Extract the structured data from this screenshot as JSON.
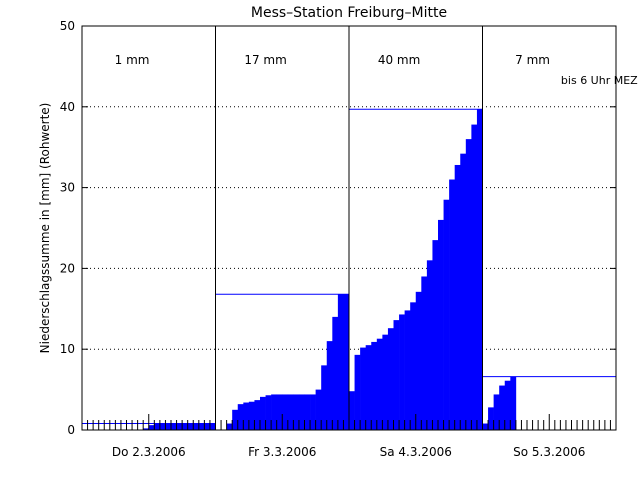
{
  "chart_data": {
    "type": "bar",
    "title": "Mess–Station Freiburg–Mitte",
    "ylabel": "Niederschlagssumme in [mm] (Rohwerte)",
    "xlabel": "",
    "ylim": [
      0,
      50
    ],
    "yticks": [
      "0",
      "10",
      "20",
      "30",
      "40",
      "50"
    ],
    "grid": "horizontal dotted",
    "hours": [
      0,
      96
    ],
    "days": [
      {
        "label": "Do 2.3.2006",
        "total_label": "1 mm",
        "total": 0.8,
        "cumulative": [
          0,
          0,
          0,
          0,
          0,
          0,
          0,
          0,
          0,
          0,
          0,
          0.2,
          0.6,
          0.8,
          0.8,
          0.8,
          0.8,
          0.8,
          0.8,
          0.8,
          0.8,
          0.8,
          0.8,
          0.8
        ]
      },
      {
        "label": "Fr 3.3.2006",
        "total_label": "17 mm",
        "total": 16.8,
        "cumulative": [
          0,
          0,
          0.8,
          2.5,
          3.2,
          3.4,
          3.5,
          3.7,
          4.1,
          4.3,
          4.4,
          4.4,
          4.4,
          4.4,
          4.4,
          4.4,
          4.4,
          4.4,
          5,
          8,
          11,
          14,
          16.8,
          16.8
        ]
      },
      {
        "label": "Sa 4.3.2006",
        "total_label": "40 mm",
        "total": 39.7,
        "cumulative": [
          4.8,
          9.3,
          10.2,
          10.5,
          10.9,
          11.3,
          11.8,
          12.6,
          13.6,
          14.3,
          14.8,
          15.8,
          17.1,
          19,
          21,
          23.5,
          26,
          28.5,
          31,
          32.8,
          34.2,
          36,
          37.8,
          39.7
        ]
      },
      {
        "label": "So 5.3.2006",
        "total_label": "7 mm",
        "total": 6.6,
        "note": "bis 6 Uhr MEZ",
        "cumulative": [
          0.8,
          2.8,
          4.4,
          5.5,
          6.1,
          6.6
        ]
      }
    ],
    "colors": {
      "bars": "#0000ff",
      "total_line": "#0000ff",
      "axes": "#000000"
    }
  }
}
